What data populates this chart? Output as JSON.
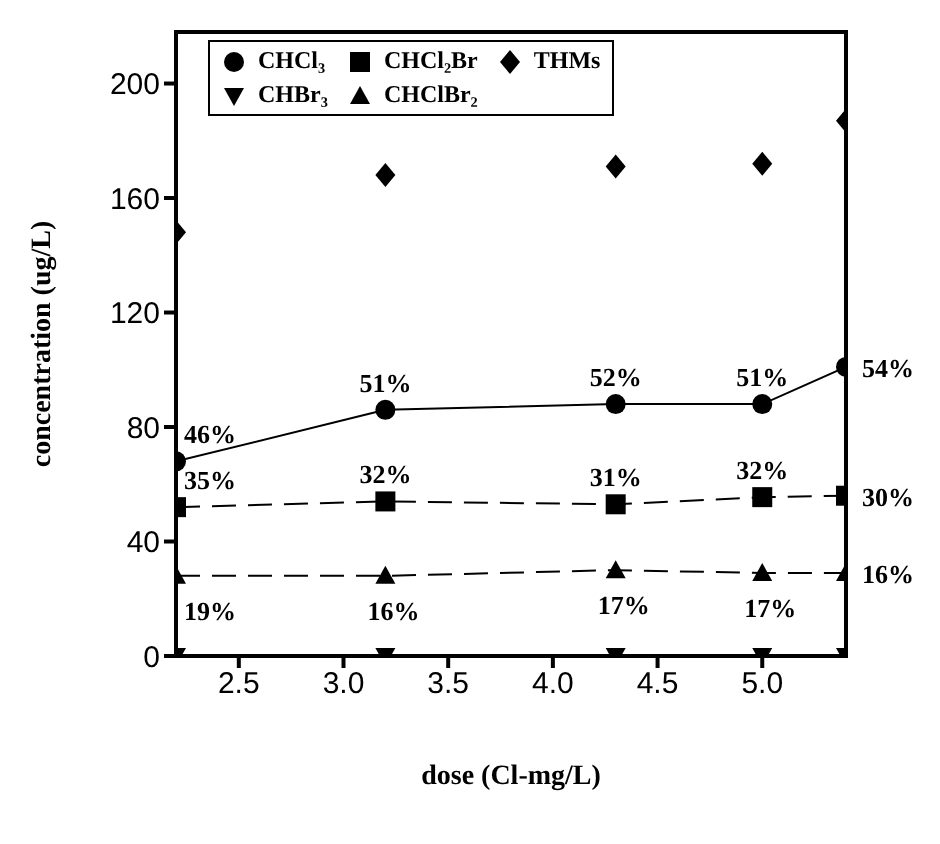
{
  "chart_data": {
    "type": "line",
    "xlabel": "dose (Cl-mg/L)",
    "ylabel": "concentration (ug/L)",
    "x": [
      2.2,
      3.2,
      4.3,
      5.0,
      5.4
    ],
    "xlim": [
      2.2,
      5.4
    ],
    "xticks": [
      {
        "value": 2.5,
        "label": "2.5"
      },
      {
        "value": 3.0,
        "label": "3.0"
      },
      {
        "value": 3.5,
        "label": "3.5"
      },
      {
        "value": 4.0,
        "label": "4.0"
      },
      {
        "value": 4.5,
        "label": "4.5"
      },
      {
        "value": 5.0,
        "label": "5.0"
      }
    ],
    "ylim": [
      0,
      218
    ],
    "yticks": [
      0,
      40,
      80,
      120,
      160,
      200
    ],
    "grid": false,
    "legend": "top left",
    "series": [
      {
        "name": "CHCl₃",
        "color": "#000000",
        "marker": "circle",
        "line_style": "solid",
        "values": [
          68,
          86,
          88,
          88,
          101
        ]
      },
      {
        "name": "CHCl₂Br",
        "color": "#000000",
        "marker": "square",
        "line_style": "dashed",
        "values": [
          52,
          54,
          53,
          55.5,
          56
        ]
      },
      {
        "name": "THMs",
        "type": "scatter",
        "color": "#000000",
        "marker": "diamond",
        "values": [
          148,
          168,
          171,
          172,
          187
        ]
      },
      {
        "name": "CHBr₃",
        "type": "scatter",
        "color": "#000000",
        "marker": "triangle-down",
        "values": [
          0,
          0,
          0,
          0,
          0
        ]
      },
      {
        "name": "CHClBr₂",
        "color": "#000000",
        "marker": "triangle",
        "line_style": "dashed",
        "values": [
          28,
          28,
          30,
          29,
          29
        ]
      }
    ],
    "annotations": [
      {
        "text": "46%",
        "x": 2.2,
        "y": 68
      },
      {
        "text": "51%",
        "x": 3.2,
        "y": 86
      },
      {
        "text": "52%",
        "x": 4.3,
        "y": 88
      },
      {
        "text": "51%",
        "x": 5.0,
        "y": 88
      },
      {
        "text": "54%",
        "x": 5.4,
        "y": 101
      },
      {
        "text": "35%",
        "x": 2.2,
        "y": 52
      },
      {
        "text": "32%",
        "x": 3.2,
        "y": 54
      },
      {
        "text": "31%",
        "x": 4.3,
        "y": 53
      },
      {
        "text": "32%",
        "x": 5.0,
        "y": 55.5
      },
      {
        "text": "30%",
        "x": 5.4,
        "y": 56
      },
      {
        "text": "19%",
        "x": 2.2,
        "y": 28
      },
      {
        "text": "16%",
        "x": 3.2,
        "y": 28
      },
      {
        "text": "17%",
        "x": 4.3,
        "y": 30
      },
      {
        "text": "17%",
        "x": 5.0,
        "y": 29
      },
      {
        "text": "16%",
        "x": 5.4,
        "y": 29
      }
    ]
  }
}
